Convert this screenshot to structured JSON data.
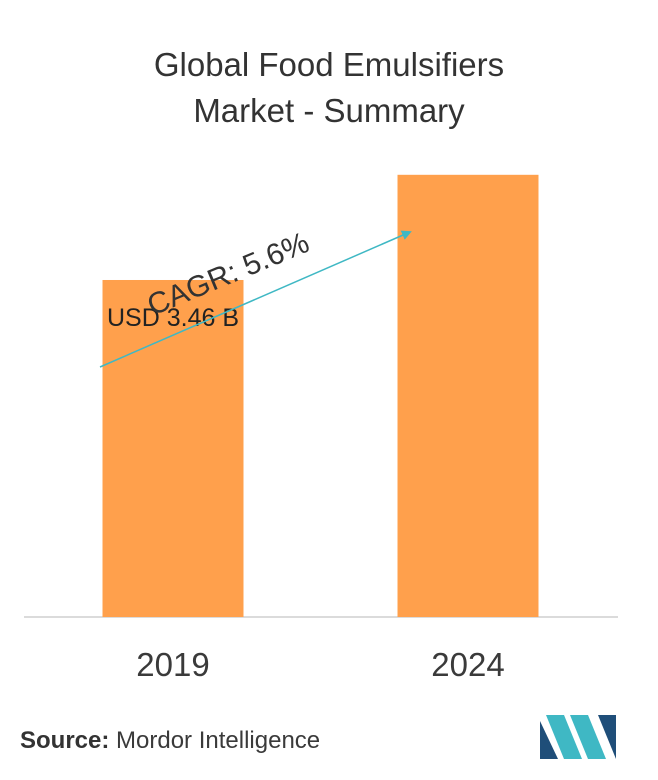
{
  "chart_data": {
    "type": "bar",
    "title_line1": "Global Food Emulsifiers",
    "title_line2": "Market - Summary",
    "categories": [
      "2019",
      "2024"
    ],
    "values": [
      3.46,
      4.54
    ],
    "ylim": [
      0,
      5.0
    ],
    "data_labels": [
      "USD 3.46 B",
      ""
    ],
    "bar_color": "#FFA04C",
    "annotation": {
      "text": "CAGR: 5.6%",
      "arrow_color": "#3FB8C4"
    },
    "grid": false
  },
  "footer": {
    "source_label": "Source:",
    "source_value": " Mordor Intelligence"
  },
  "logo": {
    "icon": "mordor-intelligence-logo-icon",
    "colors": [
      "#3FB8C4",
      "#1F4E79"
    ]
  }
}
